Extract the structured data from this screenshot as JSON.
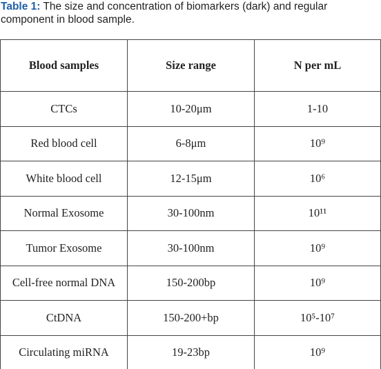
{
  "caption": {
    "label": "Table 1:",
    "text": "The size and concentration of biomarkers (dark) and regular component in blood sample."
  },
  "table": {
    "header": [
      "Blood samples",
      "Size range",
      "N per mL"
    ],
    "rows": [
      [
        "CTCs",
        "10-20μm",
        "1-10"
      ],
      [
        "Red blood cell",
        "6-8μm",
        "10⁹"
      ],
      [
        "White blood cell",
        "12-15μm",
        "10⁶"
      ],
      [
        "Normal Exosome",
        "30-100nm",
        "10¹¹"
      ],
      [
        "Tumor Exosome",
        "30-100nm",
        "10⁹"
      ],
      [
        "Cell-free normal DNA",
        "150-200bp",
        "10⁹"
      ],
      [
        "CtDNA",
        "150-200+bp",
        "10⁵-10⁷"
      ],
      [
        "Circulating miRNA",
        "19-23bp",
        "10⁹"
      ]
    ]
  }
}
